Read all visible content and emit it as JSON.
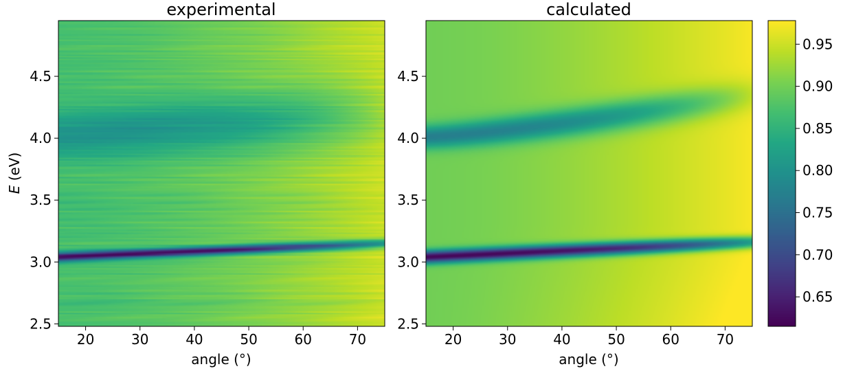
{
  "chart_data": [
    {
      "type": "heatmap",
      "title": "experimental",
      "xlabel": "angle (°)",
      "ylabel_symbol": "E",
      "ylabel_unit": " (eV)",
      "xlim": [
        15,
        75
      ],
      "ylim": [
        2.48,
        4.95
      ],
      "xticks": [
        20,
        30,
        40,
        50,
        60,
        70
      ],
      "yticks": [
        2.5,
        3.0,
        3.5,
        4.0,
        4.5
      ],
      "colormap": "viridis",
      "features": [
        {
          "name": "band",
          "E_at_15deg": 3.04,
          "E_at_75deg": 3.15,
          "min_value": 0.62,
          "width_eV": 0.035
        },
        {
          "name": "band",
          "E_at_15deg": 4.02,
          "E_at_75deg": 4.2,
          "min_value": 0.8,
          "width_eV": 0.18
        }
      ],
      "background": {
        "value_low_angle": 0.87,
        "value_high_angle": 0.95,
        "noise": "horizontal striations"
      }
    },
    {
      "type": "heatmap",
      "title": "calculated",
      "xlabel": "angle (°)",
      "xlim": [
        15,
        75
      ],
      "ylim": [
        2.48,
        4.95
      ],
      "xticks": [
        20,
        30,
        40,
        50,
        60,
        70
      ],
      "yticks": [
        2.5,
        3.0,
        3.5,
        4.0,
        4.5
      ],
      "colormap": "viridis",
      "features": [
        {
          "name": "band",
          "E_at_15deg": 3.04,
          "E_at_75deg": 3.16,
          "min_value": 0.62,
          "width_eV": 0.05
        },
        {
          "name": "band",
          "E_at_15deg": 4.01,
          "E_at_75deg": 4.35,
          "min_value": 0.77,
          "width_eV": 0.09
        }
      ],
      "background": {
        "value_low_angle": 0.9,
        "value_high_angle": 0.975,
        "noise": "none"
      }
    }
  ],
  "colorbar": {
    "vmin": 0.615,
    "vmax": 0.978,
    "ticks": [
      0.65,
      0.7,
      0.75,
      0.8,
      0.85,
      0.9,
      0.95
    ],
    "tick_labels": [
      "0.65",
      "0.70",
      "0.75",
      "0.80",
      "0.85",
      "0.90",
      "0.95"
    ]
  }
}
